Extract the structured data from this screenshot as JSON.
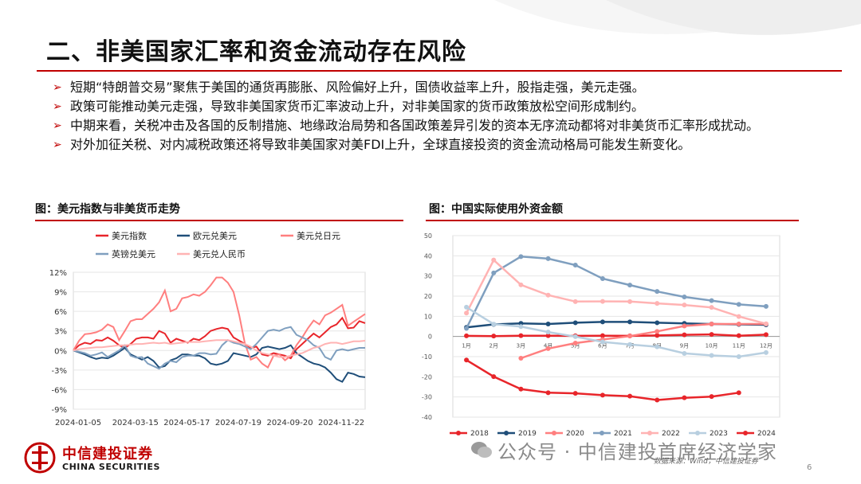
{
  "title": "二、非美国家汇率和资金流动存在风险",
  "bullets": [
    "短期“特朗普交易”聚焦于美国的通货再膨胀、风险偏好上升，国债收益率上升，股指走强，美元走强。",
    "政策可能推动美元走强，导致非美国家货币汇率波动上升，对非美国家的货币政策放松空间形成制约。",
    "中期来看，关税冲击及各国的反制措施、地缘政治局势和各国政策差异引发的资本无序流动都将对非美货币汇率形成扰动。",
    "对外加征关税、对内减税政策还将导致非美国家对美FDI上升，全球直接投资的资金流动格局可能发生新变化。"
  ],
  "colors": {
    "accent": "#c00000"
  },
  "chart_data": [
    {
      "type": "line",
      "title": "图：美元指数与非美货币走势",
      "x": [
        "2024-01-05",
        "2024-01-12",
        "2024-01-19",
        "2024-01-26",
        "2024-02-02",
        "2024-02-09",
        "2024-02-16",
        "2024-02-23",
        "2024-03-01",
        "2024-03-08",
        "2024-03-15",
        "2024-03-22",
        "2024-03-29",
        "2024-04-05",
        "2024-04-12",
        "2024-04-19",
        "2024-04-26",
        "2024-05-03",
        "2024-05-10",
        "2024-05-17",
        "2024-05-24",
        "2024-05-31",
        "2024-06-07",
        "2024-06-14",
        "2024-06-21",
        "2024-06-28",
        "2024-07-05",
        "2024-07-12",
        "2024-07-19",
        "2024-07-26",
        "2024-08-02",
        "2024-08-09",
        "2024-08-16",
        "2024-08-23",
        "2024-08-30",
        "2024-09-06",
        "2024-09-13",
        "2024-09-20",
        "2024-09-27",
        "2024-10-04",
        "2024-10-11",
        "2024-10-18",
        "2024-10-25",
        "2024-11-01",
        "2024-11-08",
        "2024-11-15",
        "2024-11-22",
        "2024-11-29",
        "2024-12-06",
        "2024-12-13",
        "2024-12-20",
        "2024-12-27"
      ],
      "x_tick_labels": [
        "2024-01-05",
        "2024-03-15",
        "2024-05-17",
        "2024-07-19",
        "2024-09-20",
        "2024-11-22"
      ],
      "ylim": [
        -9,
        12
      ],
      "y_ticks": [
        "-9%",
        "-6%",
        "-3%",
        "0%",
        "3%",
        "6%",
        "9%",
        "12%"
      ],
      "legend": "top",
      "series": [
        {
          "name": "美元指数",
          "color": "#e8252a",
          "values": [
            0,
            0.8,
            1.2,
            1.0,
            1.6,
            1.5,
            2.0,
            1.5,
            0.8,
            0.4,
            1.0,
            1.8,
            2.0,
            2.0,
            1.8,
            3.0,
            2.6,
            1.2,
            1.8,
            1.5,
            1.2,
            1.8,
            1.6,
            2.2,
            3.0,
            3.3,
            3.5,
            3.3,
            2.0,
            1.5,
            1.0,
            0.4,
            0.6,
            -0.6,
            -0.8,
            -0.4,
            -0.6,
            -0.8,
            -1.2,
            0.2,
            1.0,
            1.8,
            2.6,
            2.0,
            2.8,
            3.6,
            4.0,
            5.0,
            3.4,
            3.5,
            4.5,
            4.2
          ]
        },
        {
          "name": "欧元兑美元",
          "color": "#1f4e79",
          "values": [
            0,
            -0.3,
            -0.6,
            -1.0,
            -1.3,
            -1.1,
            -1.2,
            -0.8,
            -0.2,
            0.4,
            -0.6,
            -1.0,
            -1.4,
            -1.0,
            -1.6,
            -2.6,
            -2.4,
            -1.5,
            -1.2,
            -0.6,
            -0.6,
            -0.8,
            -0.8,
            -1.2,
            -2.0,
            -2.2,
            -2.0,
            -1.6,
            -0.4,
            -0.6,
            -0.8,
            -1.0,
            -0.6,
            0.4,
            0.6,
            0.4,
            0.2,
            0.4,
            0.8,
            -0.4,
            -1.0,
            -1.6,
            -2.0,
            -2.2,
            -2.6,
            -3.4,
            -4.4,
            -4.8,
            -3.4,
            -3.6,
            -4.0,
            -4.1
          ]
        },
        {
          "name": "美元兑日元",
          "color": "#ff7f7f",
          "values": [
            0,
            1.5,
            2.5,
            2.6,
            2.8,
            3.2,
            4.0,
            3.6,
            1.6,
            3.0,
            4.5,
            4.8,
            4.8,
            5.6,
            6.4,
            7.4,
            9.2,
            6.0,
            6.4,
            8.0,
            8.2,
            8.6,
            8.4,
            9.0,
            10.0,
            11.2,
            11.2,
            10.4,
            9.0,
            5.4,
            1.0,
            -1.4,
            -1.0,
            -2.0,
            -2.6,
            -0.8,
            -0.6,
            -1.5,
            -0.8,
            0.8,
            2.0,
            3.4,
            4.6,
            4.0,
            5.4,
            5.8,
            6.4,
            7.0,
            3.8,
            4.4,
            5.0,
            5.6
          ]
        },
        {
          "name": "英镑兑美元",
          "color": "#7f9fbf",
          "values": [
            0,
            -0.2,
            -0.4,
            -0.8,
            -0.6,
            -0.3,
            -1.0,
            -0.5,
            0,
            0.8,
            -0.8,
            -1.1,
            -1.0,
            -2.0,
            -2.4,
            -2.8,
            -2.0,
            -1.6,
            -1.8,
            -1.0,
            -0.8,
            -0.8,
            -0.4,
            -0.4,
            -0.6,
            -0.5,
            0.8,
            1.6,
            1.2,
            1.0,
            0.6,
            0.2,
            1.0,
            2.0,
            3.0,
            3.2,
            3.0,
            3.4,
            3.6,
            2.4,
            2.0,
            1.6,
            0.8,
            0.4,
            -1.0,
            -1.4,
            0,
            0.2,
            0,
            0.2,
            0.4,
            0.4
          ]
        },
        {
          "name": "美元兑人民币",
          "color": "#ffb3b3",
          "values": [
            0,
            0.2,
            0.3,
            0.4,
            0.5,
            0.5,
            0.6,
            0.7,
            0.8,
            0.8,
            0.9,
            1.0,
            1.0,
            1.1,
            1.2,
            1.1,
            1.2,
            1.0,
            1.1,
            1.2,
            1.3,
            1.3,
            1.3,
            1.4,
            1.5,
            1.6,
            1.6,
            1.6,
            1.4,
            1.2,
            1.0,
            0.6,
            0.0,
            -0.4,
            -0.6,
            -0.8,
            -1.0,
            -1.0,
            -0.8,
            -0.6,
            -0.4,
            0.0,
            0.4,
            0.6,
            1.0,
            1.2,
            1.2,
            1.0,
            1.2,
            1.4,
            1.4,
            1.5
          ]
        }
      ]
    },
    {
      "type": "line",
      "title": "图：中国实际使用外资金额",
      "categories": [
        "1月",
        "2月",
        "3月",
        "4月",
        "5月",
        "6月",
        "7月",
        "8月",
        "9月",
        "10月",
        "11月",
        "12月"
      ],
      "ylim": [
        -40,
        50
      ],
      "y_ticks": [
        -40,
        -30,
        -20,
        -10,
        0,
        10,
        20,
        30,
        40,
        50
      ],
      "legend": "bottom",
      "series": [
        {
          "name": "2018",
          "color": "#e8252a",
          "values": [
            0.3,
            0.2,
            0.4,
            0.4,
            0.3,
            0.4,
            0.3,
            0.5,
            0.8,
            1.0,
            0.4,
            0.9
          ]
        },
        {
          "name": "2019",
          "color": "#1f4e79",
          "values": [
            4.5,
            6.0,
            6.5,
            6.2,
            6.8,
            7.2,
            7.2,
            6.8,
            6.5,
            6.2,
            6.0,
            5.8
          ]
        },
        {
          "name": "2020",
          "color": "#ff7f7f",
          "values": [
            null,
            null,
            -10.8,
            -6.0,
            -3.3,
            -1.5,
            0.2,
            2.5,
            5.2,
            6.2,
            6.2,
            6.2
          ]
        },
        {
          "name": "2021",
          "color": "#7f9fbf",
          "values": [
            4.0,
            31.5,
            39.6,
            38.6,
            35.4,
            28.7,
            25.5,
            22.3,
            19.6,
            17.8,
            15.9,
            14.9
          ]
        },
        {
          "name": "2022",
          "color": "#ffb3b3",
          "values": [
            11.6,
            37.9,
            25.6,
            20.5,
            17.3,
            17.4,
            17.3,
            16.4,
            15.6,
            14.4,
            9.9,
            6.3
          ]
        },
        {
          "name": "2023",
          "color": "#b8cfe0",
          "values": [
            14.5,
            6.1,
            4.9,
            2.2,
            -0.1,
            -2.7,
            -4.0,
            -5.1,
            -8.4,
            -9.4,
            -10.0,
            -8.0
          ]
        },
        {
          "name": "2024",
          "color": "#e8252a",
          "values": [
            -11.7,
            -19.9,
            -26.1,
            -27.9,
            -28.2,
            -29.1,
            -29.6,
            -31.5,
            -30.4,
            -29.8,
            -27.9,
            null
          ]
        }
      ]
    }
  ],
  "logo": {
    "cn": "中信建投证券",
    "en": "CHINA SECURITIES"
  },
  "watermark": "公众号 · 中信建投首席经济学家",
  "source": "数据来源：Wind，中信建投证券",
  "page_number": "6"
}
